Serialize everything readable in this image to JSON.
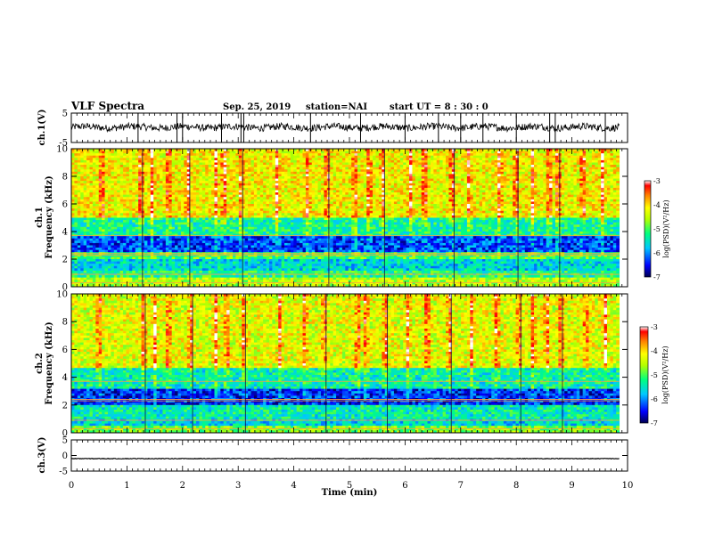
{
  "header": {
    "title": "VLF Spectra",
    "date": "Sep. 25, 2019",
    "station": "station=NAI",
    "start": "start  UT =   8 : 30 : 0"
  },
  "colors": {
    "waveform": "#000000",
    "colormap": [
      "#00007a",
      "#0000ff",
      "#00c8ff",
      "#00ff80",
      "#b4ff00",
      "#ffff00",
      "#ff8000",
      "#ff0000",
      "#ffffff"
    ]
  },
  "chart_data": [
    {
      "type": "line",
      "name": "ch1-waveform",
      "ylabel": "ch.1(V)",
      "ylim": [
        -5,
        5
      ],
      "yticks": [
        "5",
        "-5"
      ],
      "x_range_min": [
        0,
        9.85
      ],
      "baseline_v": 0.2,
      "noise_amplitude_v": 1.2,
      "clipped_spike_times_min": [
        1.2,
        1.9,
        2.0,
        2.7,
        3.05,
        3.1,
        4.3,
        5.2,
        6.0,
        6.6,
        7.0,
        7.4,
        8.0,
        8.6,
        8.7,
        9.6
      ]
    },
    {
      "type": "heatmap",
      "name": "ch1-spectrogram",
      "ylabel": "ch.1\nFrequency  (kHz)",
      "ylim": [
        0,
        10
      ],
      "yticks": [
        "0",
        "2",
        "4",
        "6",
        "8",
        "10"
      ],
      "x_range_min": [
        0,
        9.85
      ],
      "colorbar": {
        "label": "log(PSD)(V²/Hz)",
        "range": [
          -7,
          -3
        ],
        "ticks": [
          "-3",
          "-4",
          "-5",
          "-6",
          "-7"
        ]
      },
      "bands": [
        {
          "f_khz": [
            0,
            0.6
          ],
          "log_psd": -4.5
        },
        {
          "f_khz": [
            0.6,
            1.2
          ],
          "log_psd": -5.2
        },
        {
          "f_khz": [
            1.2,
            2.0
          ],
          "log_psd": -5.6
        },
        {
          "f_khz": [
            2.0,
            2.5
          ],
          "log_psd": -5.0
        },
        {
          "f_khz": [
            2.5,
            3.6
          ],
          "log_psd": -6.3
        },
        {
          "f_khz": [
            3.6,
            5.0
          ],
          "log_psd": -5.3
        },
        {
          "f_khz": [
            5.0,
            10.0
          ],
          "log_psd": -4.2
        }
      ],
      "burst_times_min": [
        0.55,
        1.25,
        1.45,
        1.75,
        2.1,
        2.6,
        2.75,
        3.05,
        3.7,
        4.25,
        4.6,
        5.1,
        5.35,
        5.6,
        6.1,
        6.35,
        6.85,
        7.15,
        7.7,
        8.0,
        8.3,
        8.6,
        8.75,
        9.2,
        9.55
      ]
    },
    {
      "type": "heatmap",
      "name": "ch2-spectrogram",
      "ylabel": "ch.2\nFrequency  (kHz)",
      "ylim": [
        0,
        10
      ],
      "yticks": [
        "0",
        "2",
        "4",
        "6",
        "8",
        "10"
      ],
      "x_range_min": [
        0,
        9.85
      ],
      "colorbar": {
        "label": "log(PSD)(V²/Hz)",
        "range": [
          -7,
          -3
        ],
        "ticks": [
          "-3",
          "-4",
          "-5",
          "-6",
          "-7"
        ]
      },
      "bands": [
        {
          "f_khz": [
            0,
            0.5
          ],
          "log_psd": -4.8
        },
        {
          "f_khz": [
            0.5,
            1.0
          ],
          "log_psd": -5.6
        },
        {
          "f_khz": [
            1.0,
            2.0
          ],
          "log_psd": -5.4
        },
        {
          "f_khz": [
            2.0,
            3.2
          ],
          "log_psd": -6.4
        },
        {
          "f_khz": [
            3.2,
            4.6
          ],
          "log_psd": -5.4
        },
        {
          "f_khz": [
            4.6,
            10.0
          ],
          "log_psd": -4.3
        }
      ],
      "burst_times_min": [
        0.5,
        1.3,
        1.5,
        1.75,
        2.15,
        2.6,
        2.8,
        3.1,
        3.75,
        4.2,
        4.55,
        5.15,
        5.3,
        5.65,
        6.05,
        6.4,
        6.8,
        7.2,
        7.65,
        8.05,
        8.3,
        8.55,
        8.8,
        9.25,
        9.6
      ]
    },
    {
      "type": "line",
      "name": "ch3-waveform",
      "ylabel": "ch.3(V)",
      "ylim": [
        -5,
        5
      ],
      "yticks": [
        "5",
        "0",
        "-5"
      ],
      "x_range_min": [
        0,
        9.85
      ],
      "baseline_v": -1.0,
      "noise_amplitude_v": 0.1
    }
  ],
  "xaxis": {
    "label": "Time  (min)",
    "ticks": [
      "0",
      "1",
      "2",
      "3",
      "4",
      "5",
      "6",
      "7",
      "8",
      "9",
      "10"
    ],
    "range": [
      0,
      10
    ]
  }
}
